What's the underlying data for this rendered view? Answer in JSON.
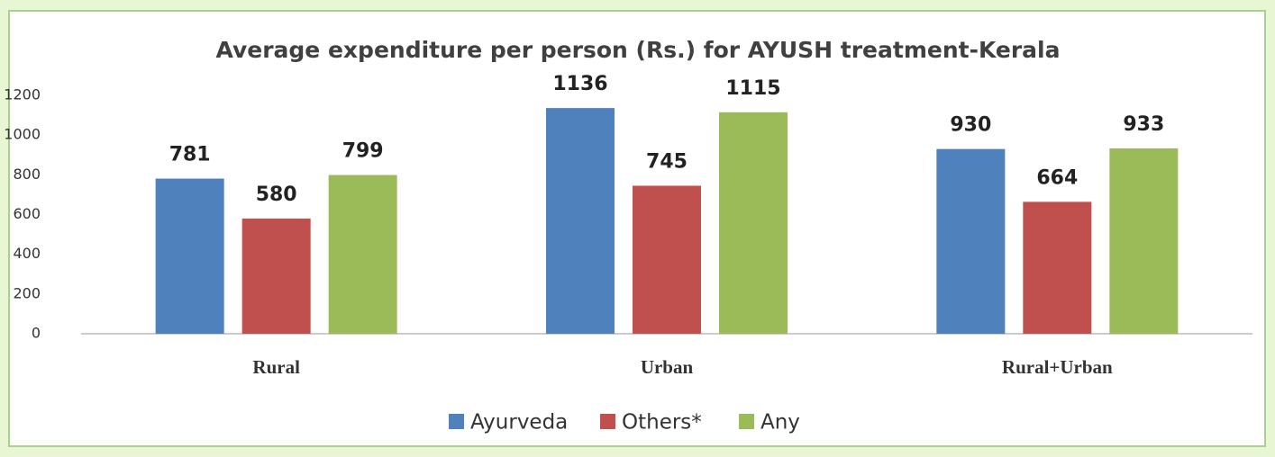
{
  "chart_data": {
    "type": "bar",
    "title": "Average expenditure per person (Rs.) for AYUSH treatment-Kerala",
    "categories": [
      "Rural",
      "Urban",
      "Rural+Urban"
    ],
    "series": [
      {
        "name": "Ayurveda",
        "color": "#4f81bd",
        "values": [
          781,
          1136,
          930
        ]
      },
      {
        "name": "Others*",
        "color": "#c0504d",
        "values": [
          580,
          745,
          664
        ]
      },
      {
        "name": "Any",
        "color": "#9bbb59",
        "values": [
          799,
          1115,
          933
        ]
      }
    ],
    "ylim": [
      0,
      1200
    ],
    "yticks": [
      0,
      200,
      400,
      600,
      800,
      1000,
      1200
    ],
    "grid": false,
    "legend": "bottom"
  }
}
